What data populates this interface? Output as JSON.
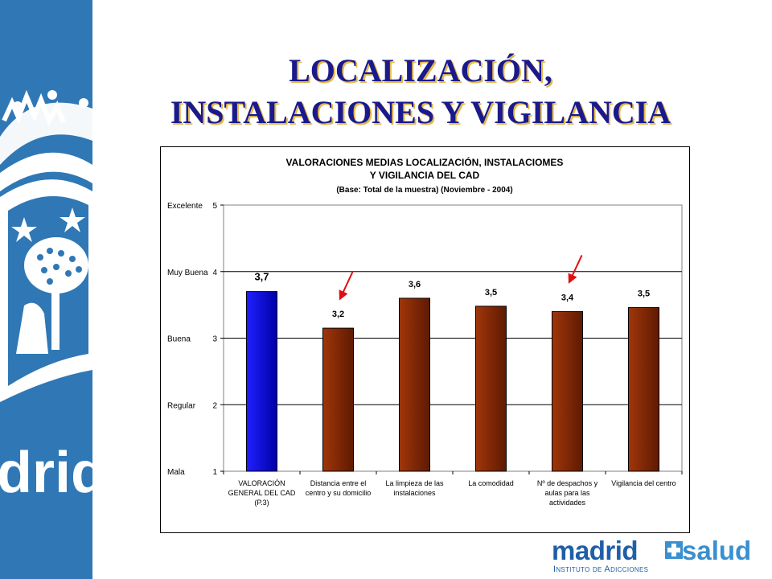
{
  "slide": {
    "title_line1": "LOCALIZACIÓN,",
    "title_line2": "INSTALACIONES Y VIGILANCIA"
  },
  "sidebar": {
    "watermark_text": "drid"
  },
  "brand": {
    "name_part1": "madrid",
    "name_part2": "salud",
    "subtitle": "Instituto de Adicciones"
  },
  "colors": {
    "sidebar": "#2f78b5",
    "title": "#1a1a8c",
    "bar_highlight": "#1010e0",
    "bar_default": "#8b2a05",
    "arrow": "#e01010"
  },
  "chart_data": {
    "type": "bar",
    "title": "VALORACIONES MEDIAS LOCALIZACIÓN, INSTALACIOMES",
    "title_line2": "Y VIGILANCIA DEL CAD",
    "subtitle": "(Base: Total de la muestra) (Noviembre - 2004)",
    "ylim": [
      1,
      5
    ],
    "yticks": [
      1,
      2,
      3,
      4,
      5
    ],
    "y_category_labels": [
      "Mala",
      "Regular",
      "Buena",
      "Muy Buena",
      "Excelente"
    ],
    "grid": true,
    "categories": [
      [
        "VALORACIÓN",
        "GENERAL DEL CAD",
        "(P.3)"
      ],
      [
        "Distancia entre el",
        "centro y su domicilio"
      ],
      [
        "La limpieza de las",
        "instalaciones"
      ],
      [
        "La comodidad"
      ],
      [
        "Nº de despachos y",
        "aulas para las",
        "actividades"
      ],
      [
        "Vigilancia del centro"
      ]
    ],
    "values": [
      3.7,
      3.15,
      3.6,
      3.48,
      3.4,
      3.46
    ],
    "value_labels": [
      "3,7",
      "3,2",
      "3,6",
      "3,5",
      "3,4",
      "3,5"
    ],
    "highlight_index": 0,
    "arrow_indices": [
      1,
      4
    ]
  }
}
